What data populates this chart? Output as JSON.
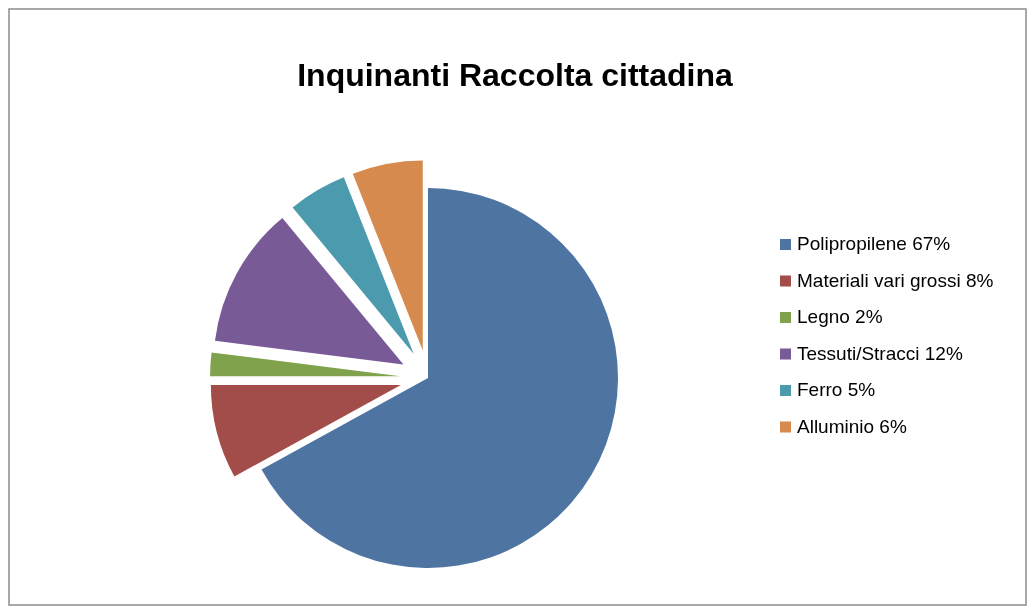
{
  "chart_data": {
    "type": "pie",
    "title": "Inquinanti Raccolta cittadina",
    "categories": [
      "Polipropilene 67%",
      "Materiali vari grossi 8%",
      "Legno 2%",
      "Tessuti/Stracci 12%",
      "Ferro 5%",
      "Alluminio 6%"
    ],
    "values": [
      67,
      8,
      2,
      12,
      5,
      6
    ],
    "colors": [
      "#4e74a2",
      "#a24d49",
      "#80a24c",
      "#785b96",
      "#4b9aae",
      "#d68a4e"
    ],
    "legend": "right"
  }
}
